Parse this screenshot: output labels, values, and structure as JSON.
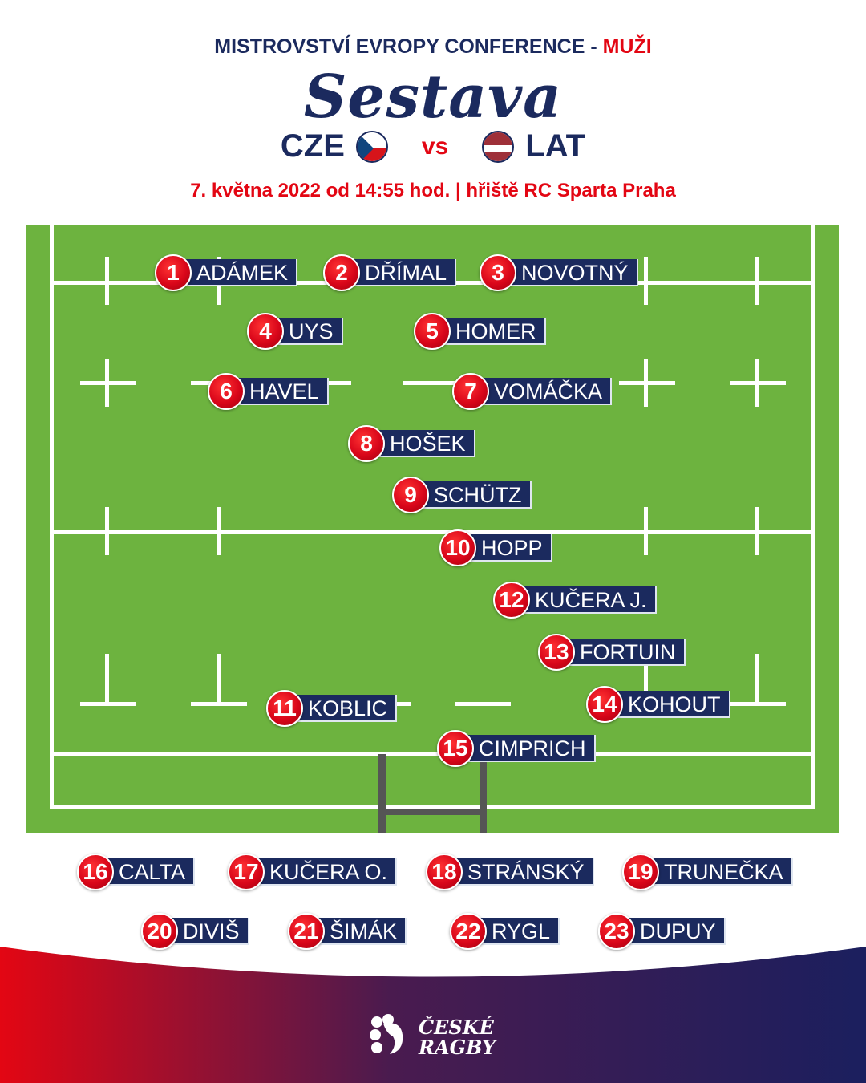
{
  "header": {
    "competition": "MISTROVSTVÍ EVROPY CONFERENCE - ",
    "category": "MUŽI",
    "title": "Sestava",
    "home": "CZE",
    "vs": "vs",
    "away": "LAT",
    "details": "7. května 2022 od 14:55 hod. | hřiště RC Sparta Praha"
  },
  "colors": {
    "navy": "#1b2a5e",
    "red": "#e30613",
    "pitch": "#6db33f"
  },
  "starters": [
    {
      "num": "1",
      "name": "ADÁMEK"
    },
    {
      "num": "2",
      "name": "DŘÍMAL"
    },
    {
      "num": "3",
      "name": "NOVOTNÝ"
    },
    {
      "num": "4",
      "name": "UYS"
    },
    {
      "num": "5",
      "name": "HOMER"
    },
    {
      "num": "6",
      "name": "HAVEL"
    },
    {
      "num": "7",
      "name": "VOMÁČKA"
    },
    {
      "num": "8",
      "name": "HOŠEK"
    },
    {
      "num": "9",
      "name": "SCHÜTZ"
    },
    {
      "num": "10",
      "name": "HOPP"
    },
    {
      "num": "12",
      "name": "KUČERA J."
    },
    {
      "num": "13",
      "name": "FORTUIN"
    },
    {
      "num": "11",
      "name": "KOBLIC"
    },
    {
      "num": "14",
      "name": "KOHOUT"
    },
    {
      "num": "15",
      "name": "CIMPRICH"
    }
  ],
  "substitutes": [
    {
      "num": "16",
      "name": "CALTA"
    },
    {
      "num": "17",
      "name": "KUČERA O."
    },
    {
      "num": "18",
      "name": "STRÁNSKÝ"
    },
    {
      "num": "19",
      "name": "TRUNEČKA"
    },
    {
      "num": "20",
      "name": "DIVIŠ"
    },
    {
      "num": "21",
      "name": "ŠIMÁK"
    },
    {
      "num": "22",
      "name": "RYGL"
    },
    {
      "num": "23",
      "name": "DUPUY"
    }
  ],
  "logo": {
    "line1": "ČESKÉ",
    "line2": "RAGBY",
    "icon": "lion-crest-icon"
  }
}
